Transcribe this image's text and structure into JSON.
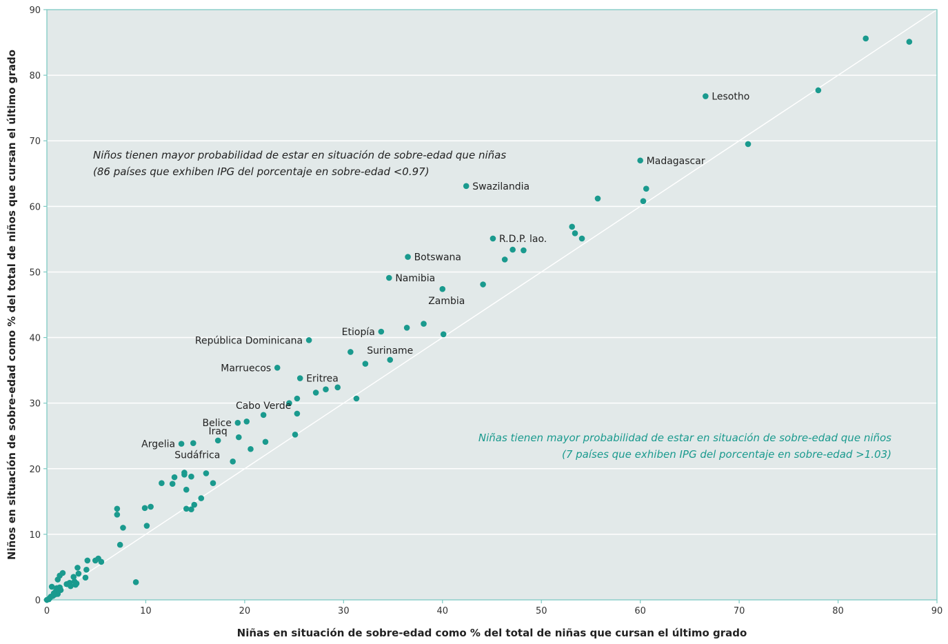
{
  "chart_data": {
    "type": "scatter",
    "title": "",
    "xlabel": "Niñas en situación de sobre-edad como % del total de niñas que cursan el último grado",
    "ylabel": "Niños en situación de sobre-edad como % del total de niños que cursan el último grado",
    "xlim": [
      0,
      90
    ],
    "ylim": [
      0,
      90
    ],
    "x_ticks": [
      "0",
      "10",
      "20",
      "30",
      "40",
      "50",
      "60",
      "70",
      "80",
      "90"
    ],
    "y_ticks": [
      "0",
      "10",
      "20",
      "30",
      "40",
      "50",
      "60",
      "70",
      "80",
      "90"
    ],
    "grid": "horizontal",
    "reference_line": "y = x",
    "colors": {
      "background": "#e2e9e9",
      "point": "#1a9a8e",
      "grid": "#ffffff",
      "frame": "#7cc9c2",
      "annotation_teal": "#1a9a8e",
      "annotation_dark": "#222222"
    },
    "annotations": [
      {
        "lines": [
          "Niños tienen mayor probabilidad de estar en situación de sobre-edad que niñas",
          "(86 países que exhiben IPG del porcentaje en sobre-edad <0.97)"
        ],
        "color": "dark",
        "align": "left"
      },
      {
        "lines": [
          "Niñas tienen mayor probabilidad de estar en situación de sobre-edad que niños",
          "(7 países que exhiben IPG del porcentaje en sobre-edad >1.03)"
        ],
        "color": "teal",
        "align": "right"
      }
    ],
    "labeled_points": [
      {
        "label": "Lesotho",
        "x": 66.6,
        "y": 76.8,
        "side": "right"
      },
      {
        "label": "Madagascar",
        "x": 60.0,
        "y": 67.0,
        "side": "right"
      },
      {
        "label": "Swazilandia",
        "x": 42.4,
        "y": 63.1,
        "side": "right"
      },
      {
        "label": "R.D.P. lao.",
        "x": 45.1,
        "y": 55.1,
        "side": "right"
      },
      {
        "label": "Botswana",
        "x": 36.5,
        "y": 52.3,
        "side": "right"
      },
      {
        "label": "Namibia",
        "x": 34.6,
        "y": 49.1,
        "side": "right"
      },
      {
        "label": "Zambia",
        "x": 40.0,
        "y": 47.4,
        "side": "below"
      },
      {
        "label": "Etiopía",
        "x": 33.8,
        "y": 40.9,
        "side": "left"
      },
      {
        "label": "República Dominicana",
        "x": 26.5,
        "y": 39.6,
        "side": "left"
      },
      {
        "label": "Suriname",
        "x": 34.7,
        "y": 36.6,
        "side": "above"
      },
      {
        "label": "Marruecos",
        "x": 23.3,
        "y": 35.4,
        "side": "left"
      },
      {
        "label": "Eritrea",
        "x": 25.6,
        "y": 33.8,
        "side": "right"
      },
      {
        "label": "Cabo Verde",
        "x": 21.9,
        "y": 28.2,
        "side": "above"
      },
      {
        "label": "Belice",
        "x": 19.3,
        "y": 27.0,
        "side": "left"
      },
      {
        "label": "Iraq",
        "x": 17.3,
        "y": 24.3,
        "side": "above"
      },
      {
        "label": "Argelia",
        "x": 13.6,
        "y": 23.8,
        "side": "left"
      },
      {
        "label": "Sudáfrica",
        "x": 14.8,
        "y": 23.9,
        "side": "below"
      }
    ],
    "points": [
      [
        82.8,
        85.6
      ],
      [
        87.2,
        85.1
      ],
      [
        78.0,
        77.7
      ],
      [
        70.9,
        69.5
      ],
      [
        55.7,
        61.2
      ],
      [
        60.3,
        60.8
      ],
      [
        60.6,
        62.7
      ],
      [
        53.1,
        56.9
      ],
      [
        53.4,
        55.9
      ],
      [
        54.1,
        55.1
      ],
      [
        47.1,
        53.4
      ],
      [
        48.2,
        53.3
      ],
      [
        46.3,
        51.9
      ],
      [
        44.1,
        48.1
      ],
      [
        38.1,
        42.1
      ],
      [
        36.4,
        41.5
      ],
      [
        40.1,
        40.5
      ],
      [
        30.7,
        37.8
      ],
      [
        32.2,
        36.0
      ],
      [
        25.3,
        30.7
      ],
      [
        24.5,
        30.0
      ],
      [
        27.2,
        31.6
      ],
      [
        28.2,
        32.1
      ],
      [
        29.4,
        32.4
      ],
      [
        31.3,
        30.7
      ],
      [
        25.3,
        28.4
      ],
      [
        20.2,
        27.2
      ],
      [
        19.4,
        24.8
      ],
      [
        22.1,
        24.1
      ],
      [
        25.1,
        25.2
      ],
      [
        20.6,
        23.0
      ],
      [
        18.8,
        21.1
      ],
      [
        16.1,
        19.3
      ],
      [
        13.9,
        19.4
      ],
      [
        13.9,
        19.1
      ],
      [
        12.9,
        18.7
      ],
      [
        14.6,
        18.8
      ],
      [
        11.6,
        17.8
      ],
      [
        12.7,
        17.7
      ],
      [
        16.8,
        17.8
      ],
      [
        14.1,
        16.8
      ],
      [
        15.6,
        15.5
      ],
      [
        14.9,
        14.5
      ],
      [
        14.1,
        13.9
      ],
      [
        14.6,
        13.8
      ],
      [
        7.1,
        13.9
      ],
      [
        7.1,
        13.0
      ],
      [
        9.9,
        14.0
      ],
      [
        10.5,
        14.2
      ],
      [
        10.1,
        11.3
      ],
      [
        7.7,
        11.0
      ],
      [
        7.4,
        8.4
      ],
      [
        9.0,
        2.7
      ],
      [
        3.1,
        4.9
      ],
      [
        4.1,
        6.0
      ],
      [
        4.9,
        6.0
      ],
      [
        5.2,
        6.3
      ],
      [
        5.5,
        5.8
      ],
      [
        4.0,
        4.6
      ],
      [
        3.9,
        3.4
      ],
      [
        3.2,
        4.0
      ],
      [
        1.6,
        4.1
      ],
      [
        1.3,
        3.7
      ],
      [
        1.1,
        3.1
      ],
      [
        2.7,
        3.5
      ],
      [
        2.3,
        2.6
      ],
      [
        2.0,
        2.4
      ],
      [
        2.4,
        2.1
      ],
      [
        2.8,
        2.8
      ],
      [
        2.9,
        2.3
      ],
      [
        3.0,
        2.5
      ],
      [
        0.5,
        2.0
      ],
      [
        1.3,
        1.9
      ],
      [
        1.4,
        1.5
      ],
      [
        0.9,
        1.3
      ],
      [
        1.1,
        0.9
      ],
      [
        0.8,
        0.8
      ],
      [
        0.6,
        0.6
      ],
      [
        0.3,
        0.3
      ],
      [
        0.2,
        0.1
      ],
      [
        0.0,
        0.0
      ],
      [
        1.0,
        1.8
      ],
      [
        0.7,
        1.0
      ],
      [
        0.4,
        0.5
      ]
    ]
  }
}
